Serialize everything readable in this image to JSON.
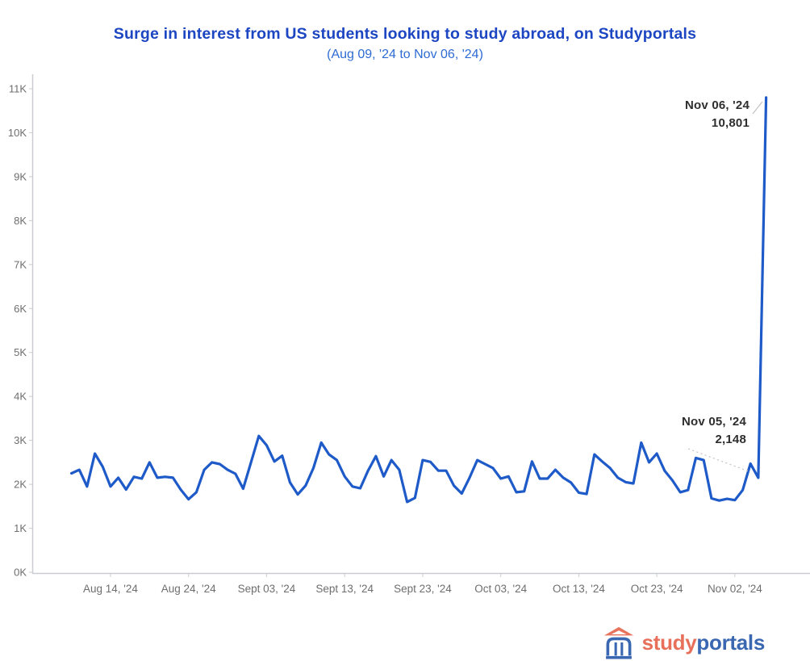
{
  "colors": {
    "title": "#1C46C2",
    "subtitle": "#2E6BD3",
    "line": "#1E5AC8",
    "axis": "#C9CDD1",
    "tick_label": "#6E6E6E",
    "annotation": "#2E2E2E",
    "leader": "#C2C2C2",
    "logo_coral": "#E8705A",
    "logo_blue": "#3A67B1"
  },
  "chart_data": {
    "type": "line",
    "title": "Surge in interest from US students looking to study abroad, on Studyportals",
    "subtitle": "(Aug 09, '24 to Nov 06, '24)",
    "xlabel": "",
    "ylabel": "",
    "ylim": [
      0,
      11000
    ],
    "grid": false,
    "legend": "none",
    "y_tick_labels": [
      "0K",
      "1K",
      "2K",
      "3K",
      "4K",
      "5K",
      "6K",
      "7K",
      "8K",
      "9K",
      "10K",
      "11K"
    ],
    "x_tick_labels": [
      "Aug 14, '24",
      "Aug 24, '24",
      "Sept 03, '24",
      "Sept 13, '24",
      "Sept 23, '24",
      "Oct 03, '24",
      "Oct 13, '24",
      "Oct 23, '24",
      "Nov 02, '24"
    ],
    "x_tick_day_indices": [
      5,
      15,
      25,
      35,
      45,
      55,
      65,
      75,
      85
    ],
    "x": [
      "Aug 09",
      "Aug 10",
      "Aug 11",
      "Aug 12",
      "Aug 13",
      "Aug 14",
      "Aug 15",
      "Aug 16",
      "Aug 17",
      "Aug 18",
      "Aug 19",
      "Aug 20",
      "Aug 21",
      "Aug 22",
      "Aug 23",
      "Aug 24",
      "Aug 25",
      "Aug 26",
      "Aug 27",
      "Aug 28",
      "Aug 29",
      "Aug 30",
      "Aug 31",
      "Sep 01",
      "Sep 02",
      "Sep 03",
      "Sep 04",
      "Sep 05",
      "Sep 06",
      "Sep 07",
      "Sep 08",
      "Sep 09",
      "Sep 10",
      "Sep 11",
      "Sep 12",
      "Sep 13",
      "Sep 14",
      "Sep 15",
      "Sep 16",
      "Sep 17",
      "Sep 18",
      "Sep 19",
      "Sep 20",
      "Sep 21",
      "Sep 22",
      "Sep 23",
      "Sep 24",
      "Sep 25",
      "Sep 26",
      "Sep 27",
      "Sep 28",
      "Sep 29",
      "Sep 30",
      "Oct 01",
      "Oct 02",
      "Oct 03",
      "Oct 04",
      "Oct 05",
      "Oct 06",
      "Oct 07",
      "Oct 08",
      "Oct 09",
      "Oct 10",
      "Oct 11",
      "Oct 12",
      "Oct 13",
      "Oct 14",
      "Oct 15",
      "Oct 16",
      "Oct 17",
      "Oct 18",
      "Oct 19",
      "Oct 20",
      "Oct 21",
      "Oct 22",
      "Oct 23",
      "Oct 24",
      "Oct 25",
      "Oct 26",
      "Oct 27",
      "Oct 28",
      "Oct 29",
      "Oct 30",
      "Oct 31",
      "Nov 01",
      "Nov 02",
      "Nov 03",
      "Nov 04",
      "Nov 05",
      "Nov 06"
    ],
    "values": [
      2250,
      2330,
      1950,
      2700,
      2400,
      1950,
      2150,
      1880,
      2170,
      2130,
      2500,
      2150,
      2170,
      2150,
      1880,
      1660,
      1820,
      2330,
      2500,
      2460,
      2330,
      2240,
      1900,
      2500,
      3100,
      2890,
      2520,
      2650,
      2040,
      1770,
      1970,
      2370,
      2950,
      2680,
      2550,
      2180,
      1950,
      1910,
      2310,
      2640,
      2180,
      2550,
      2330,
      1600,
      1690,
      2550,
      2510,
      2310,
      2310,
      1970,
      1790,
      2150,
      2550,
      2460,
      2370,
      2130,
      2180,
      1820,
      1840,
      2520,
      2130,
      2130,
      2330,
      2150,
      2040,
      1810,
      1780,
      2680,
      2520,
      2370,
      2150,
      2050,
      2020,
      2950,
      2500,
      2700,
      2310,
      2090,
      1820,
      1870,
      2600,
      2550,
      1680,
      1630,
      1670,
      1640,
      1870,
      2470,
      2148,
      10801
    ],
    "annotations": [
      {
        "label": "Nov 06, '24",
        "value": "10,801",
        "day_index": 89,
        "y_value": 10801
      },
      {
        "label": "Nov 05, '24",
        "value": "2,148",
        "day_index": 88,
        "y_value": 2148
      }
    ]
  },
  "logo": {
    "study": "study",
    "portals": "portals",
    "icon": "temple-icon"
  }
}
